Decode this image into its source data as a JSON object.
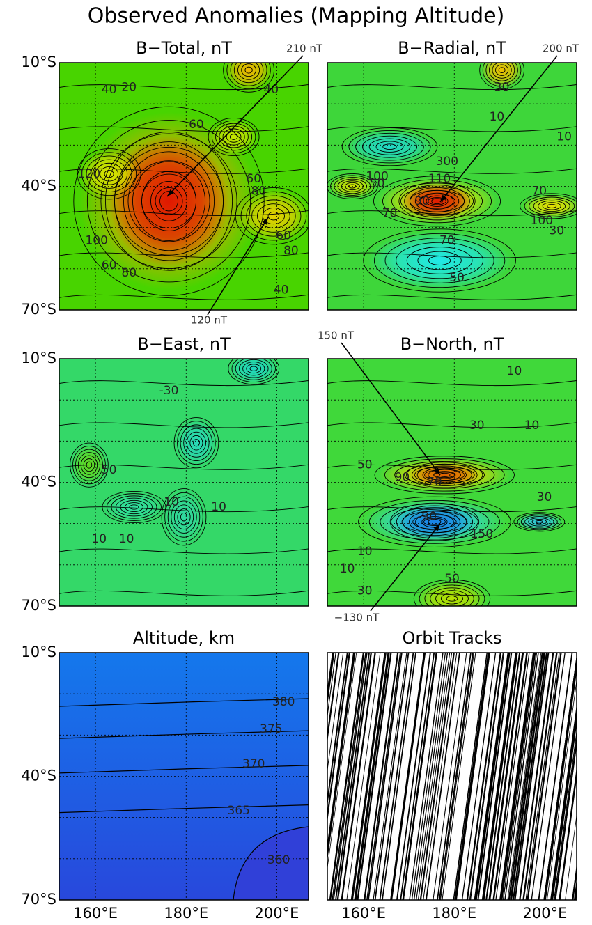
{
  "title": "Observed Anomalies (Mapping Altitude)",
  "axes": {
    "ylim": [
      -70,
      -10
    ],
    "yticks": [
      {
        "value": -10,
        "label": "10°S"
      },
      {
        "value": -40,
        "label": "40°S"
      },
      {
        "value": -70,
        "label": "70°S"
      }
    ],
    "xlim": [
      152,
      207
    ],
    "xticks": [
      {
        "value": 160,
        "label": "160°E"
      },
      {
        "value": 180,
        "label": "180°E"
      },
      {
        "value": 200,
        "label": "200°E"
      }
    ]
  },
  "panels": [
    {
      "title": "B−Total, nT",
      "annotations": [
        "210 nT",
        "120 nT"
      ],
      "contour_labels": [
        40,
        20,
        60,
        40,
        120,
        60,
        80,
        100,
        80,
        60,
        80,
        60,
        40
      ]
    },
    {
      "title": "B−Radial, nT",
      "annotations": [
        "200 nT"
      ],
      "contour_labels": [
        30,
        10,
        10,
        300,
        100,
        110,
        90,
        70,
        70,
        70,
        50,
        30,
        100,
        50
      ]
    },
    {
      "title": "B−East, nT",
      "annotations": [],
      "contour_labels": [
        -30,
        50,
        10,
        10,
        10,
        10
      ]
    },
    {
      "title": "B−North, nT",
      "annotations": [
        "150 nT",
        "−130 nT"
      ],
      "contour_labels": [
        10,
        30,
        10,
        50,
        90,
        70,
        -90,
        10,
        10,
        30,
        50,
        30,
        150
      ]
    },
    {
      "title": "Altitude, km",
      "annotations": [],
      "contour_labels": [
        380,
        375,
        370,
        365,
        360
      ]
    },
    {
      "title": "Orbit Tracks",
      "annotations": [],
      "contour_labels": []
    }
  ]
}
